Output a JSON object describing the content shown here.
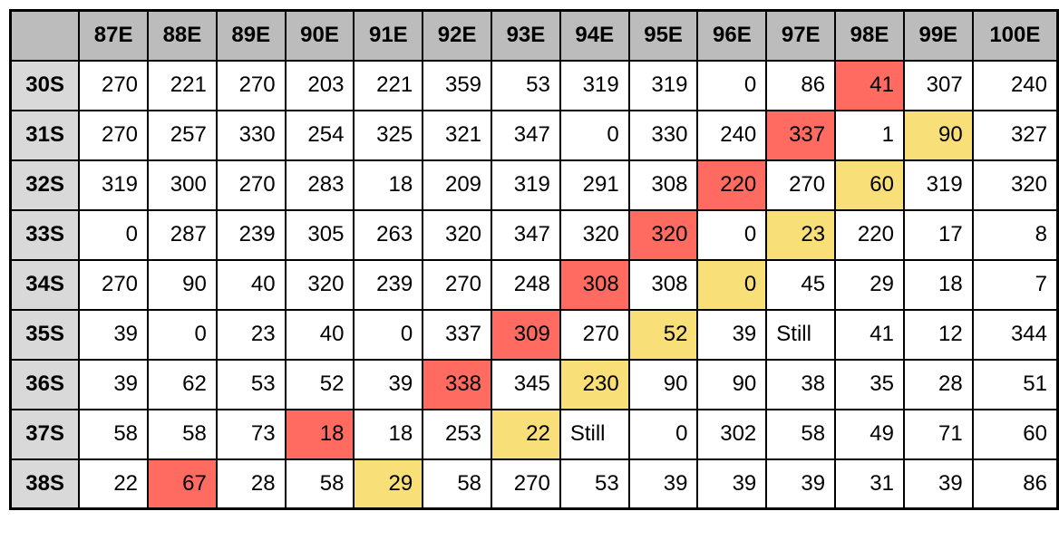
{
  "table": {
    "columns": [
      "87E",
      "88E",
      "89E",
      "90E",
      "91E",
      "92E",
      "93E",
      "94E",
      "95E",
      "96E",
      "97E",
      "98E",
      "99E",
      "100E"
    ],
    "colors": {
      "header_bg": "#bcbcbc",
      "rowhead_bg": "#d9d9d9",
      "red": "#ff6b60",
      "yellow": "#f8df78"
    },
    "rows": [
      {
        "label": "30S",
        "cells": [
          "270",
          "221",
          "270",
          "203",
          "221",
          "359",
          "53",
          "319",
          "319",
          "0",
          "86",
          "41",
          "307",
          "240"
        ],
        "red": [
          11
        ],
        "yellow": []
      },
      {
        "label": "31S",
        "cells": [
          "270",
          "257",
          "330",
          "254",
          "325",
          "321",
          "347",
          "0",
          "330",
          "240",
          "337",
          "1",
          "90",
          "327"
        ],
        "red": [
          10
        ],
        "yellow": [
          12
        ]
      },
      {
        "label": "32S",
        "cells": [
          "319",
          "300",
          "270",
          "283",
          "18",
          "209",
          "319",
          "291",
          "308",
          "220",
          "270",
          "60",
          "319",
          "320"
        ],
        "red": [
          9
        ],
        "yellow": [
          11
        ]
      },
      {
        "label": "33S",
        "cells": [
          "0",
          "287",
          "239",
          "305",
          "263",
          "320",
          "347",
          "320",
          "320",
          "0",
          "23",
          "220",
          "17",
          "8"
        ],
        "red": [
          8
        ],
        "yellow": [
          10
        ]
      },
      {
        "label": "34S",
        "cells": [
          "270",
          "90",
          "40",
          "320",
          "239",
          "270",
          "248",
          "308",
          "308",
          "0",
          "45",
          "29",
          "18",
          "7"
        ],
        "red": [
          7
        ],
        "yellow": [
          9
        ]
      },
      {
        "label": "35S",
        "cells": [
          "39",
          "0",
          "23",
          "40",
          "0",
          "337",
          "309",
          "270",
          "52",
          "39",
          "Still",
          "41",
          "12",
          "344"
        ],
        "red": [
          6
        ],
        "yellow": [
          8
        ]
      },
      {
        "label": "36S",
        "cells": [
          "39",
          "62",
          "53",
          "52",
          "39",
          "338",
          "345",
          "230",
          "90",
          "90",
          "38",
          "35",
          "28",
          "51"
        ],
        "red": [
          5
        ],
        "yellow": [
          7
        ]
      },
      {
        "label": "37S",
        "cells": [
          "58",
          "58",
          "73",
          "18",
          "18",
          "253",
          "22",
          "Still",
          "0",
          "302",
          "58",
          "49",
          "71",
          "60"
        ],
        "red": [
          3
        ],
        "yellow": [
          6
        ]
      },
      {
        "label": "38S",
        "cells": [
          "22",
          "67",
          "28",
          "58",
          "29",
          "58",
          "270",
          "53",
          "39",
          "39",
          "39",
          "31",
          "39",
          "86"
        ],
        "red": [
          1
        ],
        "yellow": [
          4
        ]
      }
    ]
  }
}
